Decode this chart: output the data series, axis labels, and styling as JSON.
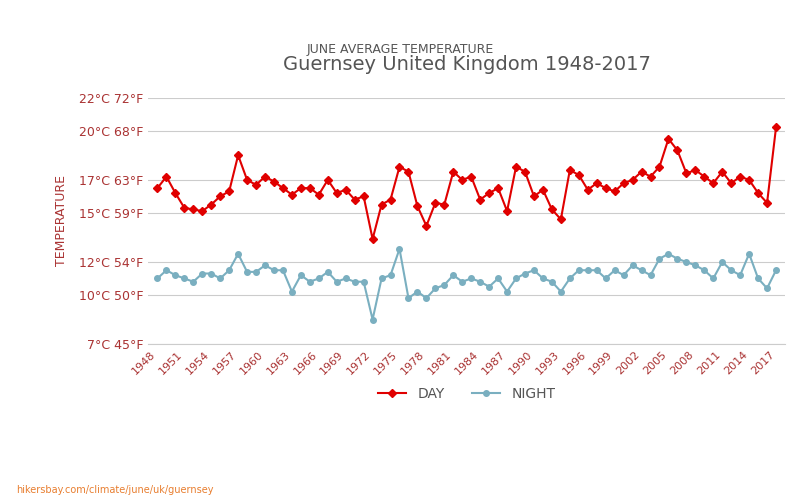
{
  "title": "Guernsey United Kingdom 1948-2017",
  "subtitle": "JUNE AVERAGE TEMPERATURE",
  "ylabel": "TEMPERATURE",
  "xlabel_url": "hikersbay.com/climate/june/uk/guernsey",
  "legend_night": "NIGHT",
  "legend_day": "DAY",
  "years": [
    1948,
    1949,
    1950,
    1951,
    1952,
    1953,
    1954,
    1955,
    1956,
    1957,
    1958,
    1959,
    1960,
    1961,
    1962,
    1963,
    1964,
    1965,
    1966,
    1967,
    1968,
    1969,
    1970,
    1971,
    1972,
    1973,
    1974,
    1975,
    1976,
    1977,
    1978,
    1979,
    1980,
    1981,
    1982,
    1983,
    1984,
    1985,
    1986,
    1987,
    1988,
    1989,
    1990,
    1991,
    1992,
    1993,
    1994,
    1995,
    1996,
    1997,
    1998,
    1999,
    2000,
    2001,
    2002,
    2003,
    2004,
    2005,
    2006,
    2007,
    2008,
    2009,
    2010,
    2011,
    2012,
    2013,
    2014,
    2015,
    2016,
    2017
  ],
  "day": [
    16.5,
    17.2,
    16.2,
    15.3,
    15.2,
    15.1,
    15.5,
    16.0,
    16.3,
    18.5,
    17.0,
    16.7,
    17.2,
    16.9,
    16.5,
    16.1,
    16.5,
    16.5,
    16.1,
    17.0,
    16.2,
    16.4,
    15.8,
    16.0,
    13.4,
    15.5,
    15.8,
    17.8,
    17.5,
    15.4,
    14.2,
    15.6,
    15.5,
    17.5,
    17.0,
    17.2,
    15.8,
    16.2,
    16.5,
    15.1,
    17.8,
    17.5,
    16.0,
    16.4,
    15.2,
    14.6,
    17.6,
    17.3,
    16.4,
    16.8,
    16.5,
    16.3,
    16.8,
    17.0,
    17.5,
    17.2,
    17.8,
    19.5,
    18.8,
    17.4,
    17.6,
    17.2,
    16.8,
    17.5,
    16.8,
    17.2,
    17.0,
    16.2,
    15.6,
    20.2
  ],
  "night": [
    11.0,
    11.5,
    11.2,
    11.0,
    10.8,
    11.3,
    11.3,
    11.0,
    11.5,
    12.5,
    11.4,
    11.4,
    11.8,
    11.5,
    11.5,
    10.2,
    11.2,
    10.8,
    11.0,
    11.4,
    10.8,
    11.0,
    10.8,
    10.8,
    8.5,
    11.0,
    11.2,
    12.8,
    9.8,
    10.2,
    9.8,
    10.4,
    10.6,
    11.2,
    10.8,
    11.0,
    10.8,
    10.5,
    11.0,
    10.2,
    11.0,
    11.3,
    11.5,
    11.0,
    10.8,
    10.2,
    11.0,
    11.5,
    11.5,
    11.5,
    11.0,
    11.5,
    11.2,
    11.8,
    11.5,
    11.2,
    12.2,
    12.5,
    12.2,
    12.0,
    11.8,
    11.5,
    11.0,
    12.0,
    11.5,
    11.2,
    12.5,
    11.0,
    10.4,
    11.5
  ],
  "day_color": "#e00000",
  "night_color": "#7aafc0",
  "background_color": "#ffffff",
  "grid_color": "#cccccc",
  "title_color": "#555555",
  "subtitle_color": "#555555",
  "ylabel_color": "#aa3333",
  "tick_color": "#aa3333",
  "ylim_c": [
    7,
    22
  ],
  "yticks_c": [
    7,
    10,
    12,
    15,
    17,
    20,
    22
  ],
  "ytick_labels": [
    "7°C 45°F",
    "10°C 50°F",
    "12°C 54°F",
    "15°C 59°F",
    "17°C 63°F",
    "20°C 68°F",
    "22°C 72°F"
  ],
  "xticks": [
    1948,
    1951,
    1954,
    1957,
    1960,
    1963,
    1966,
    1969,
    1972,
    1975,
    1978,
    1981,
    1984,
    1987,
    1990,
    1993,
    1996,
    1999,
    2002,
    2005,
    2008,
    2011,
    2014,
    2017
  ],
  "marker_size": 4,
  "line_width": 1.5
}
